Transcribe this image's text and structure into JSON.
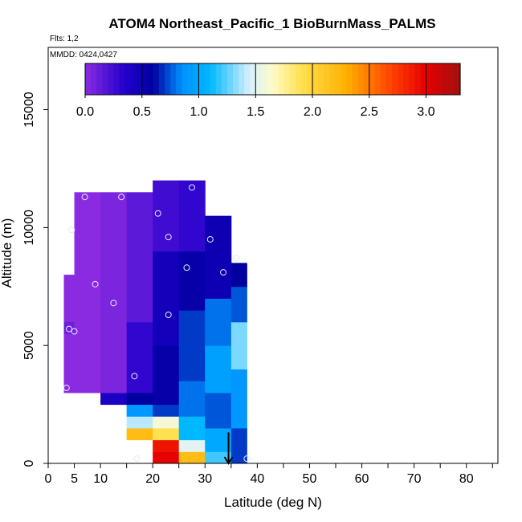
{
  "chart_data": {
    "type": "heatmap",
    "title": "ATOM4 Northeast_Pacific_1 BioBurnMass_PALMS",
    "annotations": [
      "Flts: 1,2",
      "MMDD: 0424,0427"
    ],
    "xlabel": "Latitude (deg N)",
    "ylabel": "Altitude (m)",
    "xlim": [
      0,
      85
    ],
    "ylim": [
      0,
      17500
    ],
    "x_ticks": [
      0,
      5,
      10,
      20,
      30,
      40,
      50,
      60,
      70,
      80
    ],
    "x_minor_ticks": [
      15,
      25,
      35,
      45,
      55,
      65,
      75,
      85
    ],
    "y_ticks": [
      0,
      5000,
      10000,
      15000
    ],
    "colorbar": {
      "range": [
        0,
        3.3
      ],
      "ticks": [
        0.0,
        0.5,
        1.0,
        1.5,
        2.0,
        2.5,
        3.0
      ],
      "tick_labels": [
        "0.0",
        "0.5",
        "1.0",
        "1.5",
        "2.0",
        "2.5",
        "3.0"
      ],
      "stops": [
        {
          "v": 0.0,
          "c": "#8a2be2"
        },
        {
          "v": 0.35,
          "c": "#2200cc"
        },
        {
          "v": 0.6,
          "c": "#0000a0"
        },
        {
          "v": 0.85,
          "c": "#0090ff"
        },
        {
          "v": 1.1,
          "c": "#00b8ff"
        },
        {
          "v": 1.45,
          "c": "#d8f0ff"
        },
        {
          "v": 1.65,
          "c": "#fffbc8"
        },
        {
          "v": 1.9,
          "c": "#ffe050"
        },
        {
          "v": 2.3,
          "c": "#ffb000"
        },
        {
          "v": 2.7,
          "c": "#ff4000"
        },
        {
          "v": 3.0,
          "c": "#e60000"
        },
        {
          "v": 3.3,
          "c": "#a01010"
        }
      ]
    },
    "columns": [
      {
        "x0": 3,
        "x1": 5,
        "segments": [
          [
            3000,
            8000,
            0.0
          ],
          [
            5500,
            6000,
            0.1
          ]
        ]
      },
      {
        "x0": 5,
        "x1": 10,
        "segments": [
          [
            3000,
            4000,
            0.0
          ],
          [
            4000,
            11500,
            0.0
          ]
        ]
      },
      {
        "x0": 10,
        "x1": 15,
        "segments": [
          [
            2500,
            3000,
            0.4
          ],
          [
            3000,
            11500,
            0.05
          ]
        ]
      },
      {
        "x0": 15,
        "x1": 20,
        "segments": [
          [
            1000,
            1500,
            2.2
          ],
          [
            1500,
            2000,
            1.4
          ],
          [
            2000,
            2500,
            0.9
          ],
          [
            2500,
            3000,
            0.6
          ],
          [
            3000,
            6000,
            0.3
          ],
          [
            6000,
            11500,
            0.15
          ]
        ]
      },
      {
        "x0": 20,
        "x1": 25,
        "segments": [
          [
            0,
            500,
            3.0
          ],
          [
            500,
            1000,
            2.9
          ],
          [
            1000,
            1500,
            1.9
          ],
          [
            1500,
            2000,
            1.6
          ],
          [
            2000,
            2500,
            0.7
          ],
          [
            2500,
            5000,
            0.55
          ],
          [
            5000,
            9000,
            0.45
          ],
          [
            9000,
            12000,
            0.25
          ]
        ]
      },
      {
        "x0": 25,
        "x1": 30,
        "segments": [
          [
            0,
            500,
            2.2
          ],
          [
            500,
            1000,
            1.5
          ],
          [
            1000,
            2000,
            1.1
          ],
          [
            2000,
            3500,
            0.8
          ],
          [
            3500,
            6500,
            0.7
          ],
          [
            6500,
            9000,
            0.55
          ],
          [
            9000,
            12000,
            0.3
          ]
        ]
      },
      {
        "x0": 30,
        "x1": 35,
        "segments": [
          [
            0,
            500,
            1.2
          ],
          [
            500,
            1500,
            1.0
          ],
          [
            1500,
            3000,
            0.75
          ],
          [
            3000,
            5000,
            0.95
          ],
          [
            5000,
            7000,
            0.8
          ],
          [
            7000,
            10500,
            0.5
          ]
        ]
      },
      {
        "x0": 35,
        "x1": 38,
        "segments": [
          [
            0,
            1500,
            0.7
          ],
          [
            1500,
            4000,
            0.9
          ],
          [
            4000,
            6000,
            1.3
          ],
          [
            6000,
            7500,
            0.75
          ],
          [
            7500,
            8500,
            0.6
          ]
        ]
      }
    ],
    "points": [
      {
        "x": 3.5,
        "y": 3200
      },
      {
        "x": 4.0,
        "y": 5700
      },
      {
        "x": 5.0,
        "y": 5600
      },
      {
        "x": 4.5,
        "y": 9900
      },
      {
        "x": 7.0,
        "y": 11300
      },
      {
        "x": 9.0,
        "y": 7600
      },
      {
        "x": 12.5,
        "y": 6800
      },
      {
        "x": 14.0,
        "y": 11300
      },
      {
        "x": 16.5,
        "y": 3700
      },
      {
        "x": 17.0,
        "y": 200
      },
      {
        "x": 21.0,
        "y": 10600
      },
      {
        "x": 23.0,
        "y": 9600
      },
      {
        "x": 23.0,
        "y": 6300
      },
      {
        "x": 26.5,
        "y": 8300
      },
      {
        "x": 27.5,
        "y": 11700
      },
      {
        "x": 31.0,
        "y": 9500
      },
      {
        "x": 33.5,
        "y": 8100
      },
      {
        "x": 36.0,
        "y": 8700
      },
      {
        "x": 38.0,
        "y": 200
      }
    ],
    "arrow": {
      "x": 34.5,
      "y_from": 700,
      "y_to": 0
    }
  }
}
